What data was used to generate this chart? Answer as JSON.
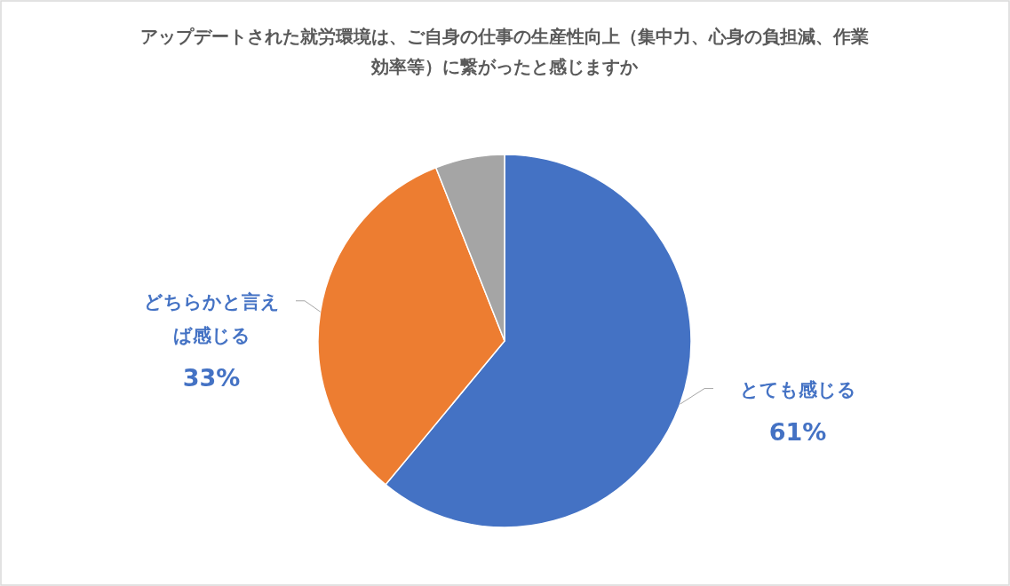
{
  "chart_data": {
    "type": "pie",
    "title": "アップデートされた就労環境は、ご自身の仕事の生産性向上（集中力、心身の負担減、作業効率等）に繋がったと感じますか",
    "categories": [
      "とても感じる",
      "どちらかと言えば感じる",
      null
    ],
    "values": [
      61,
      33,
      6
    ],
    "colors": [
      "#4472c4",
      "#ed7d31",
      "#a5a5a5"
    ],
    "value_labels": [
      "61%",
      "33%",
      null
    ],
    "legend": false
  }
}
